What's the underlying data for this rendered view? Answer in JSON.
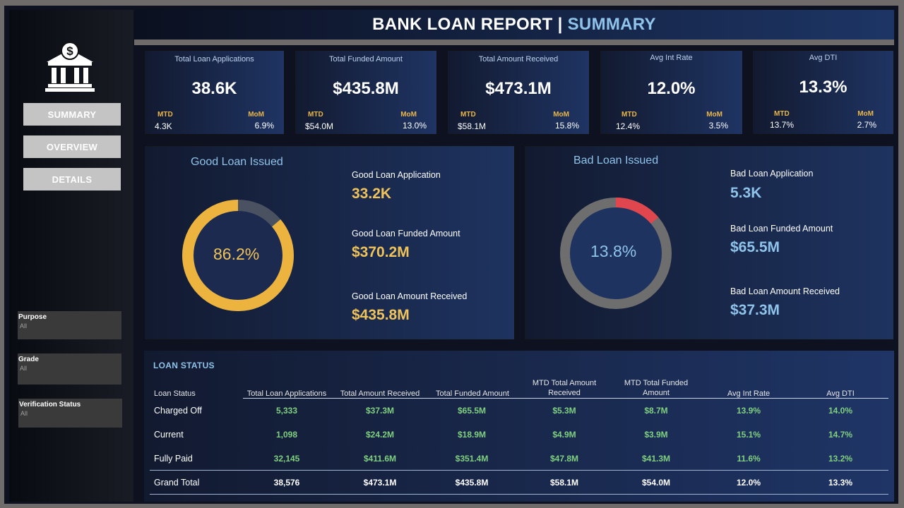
{
  "header": {
    "title_main": "BANK LOAN REPORT",
    "separator": "|",
    "title_accent": "SUMMARY"
  },
  "sidebar": {
    "logo_icon": "bank-dollar-icon",
    "nav": [
      {
        "label": "SUMMARY"
      },
      {
        "label": "OVERVIEW"
      },
      {
        "label": "DETAILS"
      }
    ],
    "filters": [
      {
        "label": "Purpose",
        "value": "All"
      },
      {
        "label": "Grade",
        "value": "All"
      },
      {
        "label": "Verification Status",
        "value": "All"
      }
    ]
  },
  "kpis": [
    {
      "title": "Total Loan Applications",
      "value": "38.6K",
      "mtd_label": "MTD",
      "mtd_value": "4.3K",
      "mom_label": "MoM",
      "mom_value": "6.9%"
    },
    {
      "title": "Total Funded Amount",
      "value": "$435.8M",
      "mtd_label": "MTD",
      "mtd_value": "$54.0M",
      "mom_label": "MoM",
      "mom_value": "13.0%"
    },
    {
      "title": "Total Amount Received",
      "value": "$473.1M",
      "mtd_label": "MTD",
      "mtd_value": "$58.1M",
      "mom_label": "MoM",
      "mom_value": "15.8%"
    },
    {
      "title": "Avg Int Rate",
      "value": "12.0%",
      "mtd_label": "MTD",
      "mtd_value": "12.4%",
      "mom_label": "MoM",
      "mom_value": "3.5%"
    },
    {
      "title": "Avg DTI",
      "value": "13.3%",
      "mtd_label": "MTD",
      "mtd_value": "13.7%",
      "mom_label": "MoM",
      "mom_value": "2.7%"
    }
  ],
  "good_loan": {
    "title": "Good Loan Issued",
    "percent_label": "86.2%",
    "percent": 86.2,
    "color": "#ecb43f",
    "rest_color": "#4a5262",
    "metrics": [
      {
        "label": "Good Loan Application",
        "value": "33.2K"
      },
      {
        "label": "Good Loan Funded Amount",
        "value": "$370.2M"
      },
      {
        "label": "Good Loan  Amount Received",
        "value": "$435.8M"
      }
    ]
  },
  "bad_loan": {
    "title": "Bad Loan Issued",
    "percent_label": "13.8%",
    "percent": 13.8,
    "color": "#e0464d",
    "rest_color": "#6e6e6e",
    "metrics": [
      {
        "label": "Bad Loan Application",
        "value": "5.3K"
      },
      {
        "label": "Bad Loan Funded Amount",
        "value": "$65.5M"
      },
      {
        "label": "Bad Loan Amount Received",
        "value": "$37.3M"
      }
    ]
  },
  "loan_status": {
    "title": "LOAN STATUS",
    "columns": [
      {
        "label": "Loan Status"
      },
      {
        "label": "Total Loan Applications"
      },
      {
        "label": "Total Amount Received"
      },
      {
        "label": "Total Funded Amount"
      },
      {
        "label": "MTD Total Amount Received"
      },
      {
        "label": "MTD Total Funded Amount"
      },
      {
        "label": "Avg Int Rate"
      },
      {
        "label": "Avg DTI"
      }
    ],
    "rows": [
      {
        "status": "Charged Off",
        "values": [
          "5,333",
          "$37.3M",
          "$65.5M",
          "$5.3M",
          "$8.7M",
          "13.9%",
          "14.0%"
        ]
      },
      {
        "status": "Current",
        "values": [
          "1,098",
          "$24.2M",
          "$18.9M",
          "$4.9M",
          "$3.9M",
          "15.1%",
          "14.7%"
        ]
      },
      {
        "status": "Fully Paid",
        "values": [
          "32,145",
          "$411.6M",
          "$351.4M",
          "$47.8M",
          "$41.3M",
          "11.6%",
          "13.2%"
        ]
      }
    ],
    "total": {
      "status": "Grand Total",
      "values": [
        "38,576",
        "$473.1M",
        "$435.8M",
        "$58.1M",
        "$54.0M",
        "12.0%",
        "13.3%"
      ]
    }
  }
}
